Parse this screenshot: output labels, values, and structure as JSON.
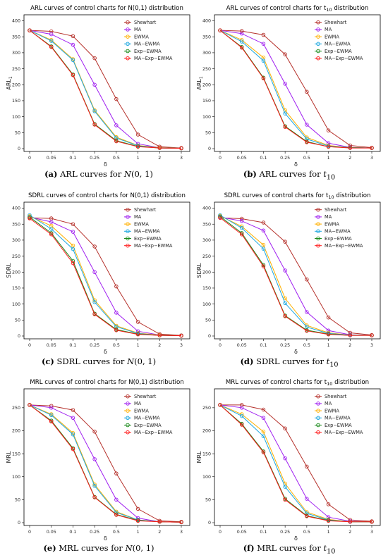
{
  "figure": {
    "chart_data": [
      {
        "type": "line",
        "title": "ARL curves of control charts for N(0,1) distribution",
        "title_sub": "",
        "xlabel": "δ",
        "ylabel": "ARL",
        "ylabel_sub": "1",
        "categories": [
          "0",
          "0.05",
          "0.1",
          "0.25",
          "0.5",
          "1",
          "2",
          "3"
        ],
        "ylim": [
          0,
          410
        ],
        "yticks": [
          0,
          50,
          100,
          150,
          200,
          250,
          300,
          350,
          400
        ],
        "legend_position": "top-right",
        "series": [
          {
            "name": "Shewhart",
            "color": "#b5312b",
            "values": [
              370,
              367,
              352,
              283,
              155,
              44,
              6,
              2
            ]
          },
          {
            "name": "MA",
            "color": "#a020f0",
            "values": [
              370,
              358,
              325,
              200,
              73,
              15,
              3,
              1
            ]
          },
          {
            "name": "EWMA",
            "color": "#ffb000",
            "values": [
              370,
              340,
              280,
              120,
              36,
              10,
              3,
              1
            ]
          },
          {
            "name": "MA−EWMA",
            "color": "#1fa8e0",
            "values": [
              370,
              337,
              277,
              117,
              33,
              9,
              2,
              1
            ]
          },
          {
            "name": "Exp−EWMA",
            "color": "#1a8a1a",
            "values": [
              370,
              320,
              232,
              77,
              25,
              7,
              2,
              1
            ]
          },
          {
            "name": "MA−Exp−EWMA",
            "color": "#ff1a1a",
            "values": [
              370,
              318,
              230,
              75,
              23,
              6,
              2,
              1
            ]
          }
        ],
        "caption_label": "(a)",
        "caption_text": "ARL curves for",
        "caption_math": "N",
        "caption_math_rest": "(0, 1)",
        "caption_sub": ""
      },
      {
        "type": "line",
        "title": "ARL curves of control charts for t",
        "title_sub": "10",
        "title_rest": " distribution",
        "xlabel": "δ",
        "ylabel": "ARL",
        "ylabel_sub": "1",
        "categories": [
          "0",
          "0.05",
          "0.1",
          "0.25",
          "0.5",
          "1",
          "2",
          "3"
        ],
        "ylim": [
          0,
          410
        ],
        "yticks": [
          0,
          50,
          100,
          150,
          200,
          250,
          300,
          350,
          400
        ],
        "legend_position": "top-right",
        "series": [
          {
            "name": "Shewhart",
            "color": "#b5312b",
            "values": [
              370,
              368,
              356,
              295,
              178,
              57,
              10,
              3
            ]
          },
          {
            "name": "MA",
            "color": "#a020f0",
            "values": [
              370,
              360,
              328,
              203,
              75,
              17,
              4,
              2
            ]
          },
          {
            "name": "EWMA",
            "color": "#ffb000",
            "values": [
              370,
              340,
              285,
              120,
              35,
              10,
              3,
              2
            ]
          },
          {
            "name": "MA−EWMA",
            "color": "#1fa8e0",
            "values": [
              370,
              335,
              275,
              110,
              30,
              8,
              3,
              2
            ]
          },
          {
            "name": "Exp−EWMA",
            "color": "#1a8a1a",
            "values": [
              370,
              318,
              222,
              70,
              22,
              6,
              3,
              2
            ]
          },
          {
            "name": "MA−Exp−EWMA",
            "color": "#ff1a1a",
            "values": [
              370,
              316,
              220,
              68,
              20,
              6,
              2,
              2
            ]
          }
        ],
        "caption_label": "(b)",
        "caption_text": "ARL curves for",
        "caption_math": "t",
        "caption_math_rest": "",
        "caption_sub": "10"
      },
      {
        "type": "line",
        "title": "SDRL curves of control charts for N(0,1) distribution",
        "title_sub": "",
        "xlabel": "δ",
        "ylabel": "SDRL",
        "ylabel_sub": "",
        "categories": [
          "0",
          "0.05",
          "0.1",
          "0.25",
          "0.5",
          "1",
          "2",
          "3"
        ],
        "ylim": [
          0,
          410
        ],
        "yticks": [
          0,
          50,
          100,
          150,
          200,
          250,
          300,
          350,
          400
        ],
        "legend_position": "top-right",
        "series": [
          {
            "name": "Shewhart",
            "color": "#b5312b",
            "values": [
              370,
              368,
              350,
              280,
              155,
              44,
              6,
              2
            ]
          },
          {
            "name": "MA",
            "color": "#a020f0",
            "values": [
              372,
              357,
              326,
              200,
              73,
              15,
              3,
              1
            ]
          },
          {
            "name": "EWMA",
            "color": "#ffb000",
            "values": [
              375,
              345,
              283,
              112,
              32,
              9,
              3,
              1
            ]
          },
          {
            "name": "MA−EWMA",
            "color": "#1fa8e0",
            "values": [
              378,
              335,
              272,
              106,
              29,
              8,
              2,
              1
            ]
          },
          {
            "name": "Exp−EWMA",
            "color": "#1a8a1a",
            "values": [
              372,
              322,
              235,
              70,
              20,
              6,
              2,
              1
            ]
          },
          {
            "name": "MA−Exp−EWMA",
            "color": "#ff1a1a",
            "values": [
              368,
              318,
              228,
              68,
              18,
              5,
              2,
              1
            ]
          }
        ],
        "caption_label": "(c)",
        "caption_text": "SDRL curves for",
        "caption_math": "N",
        "caption_math_rest": "(0, 1)",
        "caption_sub": ""
      },
      {
        "type": "line",
        "title": "SDRL curves of control charts for t",
        "title_sub": "10",
        "title_rest": " distribution",
        "xlabel": "δ",
        "ylabel": "SDRL",
        "ylabel_sub": "",
        "categories": [
          "0",
          "0.05",
          "0.1",
          "0.25",
          "0.5",
          "1",
          "2",
          "3"
        ],
        "ylim": [
          0,
          410
        ],
        "yticks": [
          0,
          50,
          100,
          150,
          200,
          250,
          300,
          350,
          400
        ],
        "legend_position": "top-right",
        "series": [
          {
            "name": "Shewhart",
            "color": "#b5312b",
            "values": [
              370,
              367,
              355,
              295,
              177,
              58,
              10,
              3
            ]
          },
          {
            "name": "MA",
            "color": "#a020f0",
            "values": [
              372,
              360,
              330,
              205,
              75,
              17,
              4,
              2
            ]
          },
          {
            "name": "EWMA",
            "color": "#ffb000",
            "values": [
              376,
              343,
              285,
              118,
              33,
              10,
              3,
              2
            ]
          },
          {
            "name": "MA−EWMA",
            "color": "#1fa8e0",
            "values": [
              378,
              338,
              273,
              103,
              28,
              8,
              3,
              2
            ]
          },
          {
            "name": "Exp−EWMA",
            "color": "#1a8a1a",
            "values": [
              374,
              322,
              222,
              64,
              18,
              6,
              2,
              2
            ]
          },
          {
            "name": "MA−Exp−EWMA",
            "color": "#ff1a1a",
            "values": [
              370,
              318,
              218,
              62,
              16,
              5,
              2,
              2
            ]
          }
        ],
        "caption_label": "(d)",
        "caption_text": "SDRL curves for",
        "caption_math": "t",
        "caption_math_rest": "",
        "caption_sub": "10"
      },
      {
        "type": "line",
        "title": "MRL curves of control charts for N(0,1) distribution",
        "title_sub": "",
        "xlabel": "δ",
        "ylabel": "MRL",
        "ylabel_sub": "",
        "categories": [
          "0",
          "0.05",
          "0.1",
          "0.25",
          "0.5",
          "1",
          "2",
          "3"
        ],
        "ylim": [
          0,
          285
        ],
        "yticks": [
          0,
          50,
          100,
          150,
          200,
          250
        ],
        "legend_position": "top-right",
        "series": [
          {
            "name": "Shewhart",
            "color": "#b5312b",
            "values": [
              256,
              254,
              245,
              198,
              107,
              30,
              4,
              2
            ]
          },
          {
            "name": "MA",
            "color": "#a020f0",
            "values": [
              256,
              250,
              228,
              138,
              50,
              10,
              2,
              1
            ]
          },
          {
            "name": "EWMA",
            "color": "#ffb000",
            "values": [
              256,
              236,
              195,
              83,
              24,
              6,
              2,
              1
            ]
          },
          {
            "name": "MA−EWMA",
            "color": "#1fa8e0",
            "values": [
              256,
              234,
              192,
              80,
              22,
              6,
              2,
              1
            ]
          },
          {
            "name": "Exp−EWMA",
            "color": "#1a8a1a",
            "values": [
              256,
              222,
              162,
              56,
              18,
              5,
              2,
              1
            ]
          },
          {
            "name": "MA−Exp−EWMA",
            "color": "#ff1a1a",
            "values": [
              256,
              220,
              160,
              55,
              17,
              4,
              2,
              1
            ]
          }
        ],
        "caption_label": "(e)",
        "caption_text": "MRL curves for",
        "caption_math": "N",
        "caption_math_rest": "(0, 1)",
        "caption_sub": ""
      },
      {
        "type": "line",
        "title": "MRL curves of control charts for t",
        "title_sub": "10",
        "title_rest": " distribution",
        "xlabel": "δ",
        "ylabel": "MRL",
        "ylabel_sub": "",
        "categories": [
          "0",
          "0.05",
          "0.1",
          "0.25",
          "0.5",
          "1",
          "2",
          "3"
        ],
        "ylim": [
          0,
          285
        ],
        "yticks": [
          0,
          50,
          100,
          150,
          200,
          250
        ],
        "legend_position": "top-right",
        "series": [
          {
            "name": "Shewhart",
            "color": "#b5312b",
            "values": [
              256,
              256,
              246,
              205,
              122,
              40,
              6,
              3
            ]
          },
          {
            "name": "MA",
            "color": "#a020f0",
            "values": [
              256,
              250,
              228,
              140,
              52,
              12,
              3,
              2
            ]
          },
          {
            "name": "EWMA",
            "color": "#ffb000",
            "values": [
              256,
              236,
              198,
              85,
              23,
              7,
              2,
              2
            ]
          },
          {
            "name": "MA−EWMA",
            "color": "#1fa8e0",
            "values": [
              256,
              232,
              188,
              78,
              20,
              6,
              2,
              2
            ]
          },
          {
            "name": "Exp−EWMA",
            "color": "#1a8a1a",
            "values": [
              256,
              215,
              155,
              52,
              15,
              5,
              2,
              2
            ]
          },
          {
            "name": "MA−Exp−EWMA",
            "color": "#ff1a1a",
            "values": [
              256,
              213,
              153,
              50,
              14,
              4,
              2,
              2
            ]
          }
        ],
        "caption_label": "(f)",
        "caption_text": "MRL curves for",
        "caption_math": "t",
        "caption_math_rest": "",
        "caption_sub": "10"
      }
    ]
  }
}
